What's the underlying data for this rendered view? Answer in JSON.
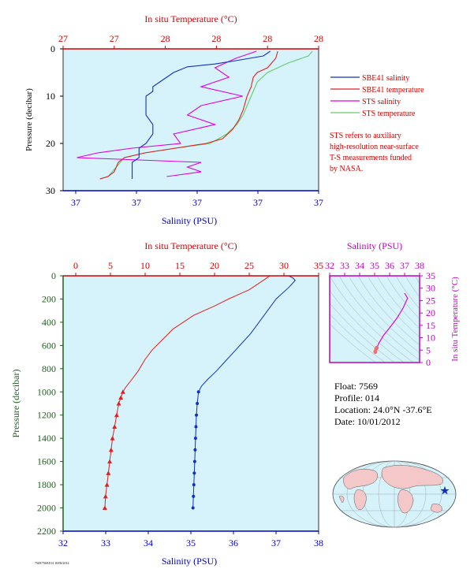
{
  "footer_code": "7569/7569/014 10/08/2014",
  "colors": {
    "salinity": "#1030c0",
    "temperature": "#e02020",
    "sts_salinity": "#e000e0",
    "sts_temperature": "#66cc66",
    "panel_bg": "#d6f3fb",
    "pressure_axis": "#1f5f1f",
    "magenta_axis": "#c000c0"
  },
  "legend": {
    "items": [
      {
        "label": "SBE41 salinity",
        "color": "#1030c0"
      },
      {
        "label": "SBE41 temperature",
        "color": "#e02020"
      },
      {
        "label": "STS salinity",
        "color": "#e000e0"
      },
      {
        "label": "STS temperature",
        "color": "#66cc66"
      }
    ],
    "note": [
      "STS refers to auxiliary",
      "high-resolution near-surface",
      "T-S measurements funded",
      "by NASA."
    ]
  },
  "info": {
    "float": "Float: 7569",
    "profile": "Profile: 014",
    "location": "Location: 24.0°N -37.6°E",
    "date": "Date: 10/01/2012"
  },
  "chart_data": [
    {
      "type": "line",
      "panel": "near-surface profile",
      "title": "",
      "top_axis_label": "In situ Temperature (°C)",
      "top_ticks": [
        "27",
        "27",
        "28",
        "28",
        "28",
        "28"
      ],
      "bottom_axis_label": "Salinity (PSU)",
      "bottom_ticks": [
        "37",
        "37",
        "37",
        "37",
        "37"
      ],
      "ylabel": "Pressure (decibar)",
      "y_ticks": [
        "0",
        "10",
        "20",
        "30"
      ],
      "ylim": [
        30,
        0
      ],
      "temperature_range": [
        27.0,
        28.25
      ],
      "salinity_range": [
        36.9,
        37.27
      ],
      "series": [
        {
          "name": "SBE41 salinity",
          "x_units": "PSU",
          "points": [
            [
              37.2,
              0.5
            ],
            [
              37.19,
              1.5
            ],
            [
              37.15,
              2.5
            ],
            [
              37.12,
              3.2
            ],
            [
              37.08,
              3.8
            ],
            [
              37.06,
              5
            ],
            [
              37.05,
              6
            ],
            [
              37.04,
              7
            ],
            [
              37.03,
              8
            ],
            [
              37.03,
              9
            ],
            [
              37.02,
              10
            ],
            [
              37.02,
              12
            ],
            [
              37.02,
              14
            ],
            [
              37.03,
              16
            ],
            [
              37.03,
              18
            ],
            [
              37.02,
              20
            ],
            [
              37.01,
              21
            ],
            [
              37.01,
              22
            ],
            [
              37.01,
              23
            ],
            [
              37.0,
              24
            ],
            [
              37.0,
              25
            ],
            [
              37.0,
              26
            ],
            [
              37.0,
              27.5
            ]
          ]
        },
        {
          "name": "SBE41 temperature",
          "x_units": "°C",
          "points": [
            [
              28.05,
              0.5
            ],
            [
              28.04,
              2
            ],
            [
              28.0,
              4
            ],
            [
              27.95,
              5
            ],
            [
              27.93,
              6
            ],
            [
              27.92,
              8
            ],
            [
              27.9,
              10
            ],
            [
              27.88,
              13
            ],
            [
              27.86,
              15
            ],
            [
              27.83,
              17
            ],
            [
              27.78,
              19
            ],
            [
              27.7,
              20
            ],
            [
              27.55,
              21
            ],
            [
              27.4,
              22
            ],
            [
              27.3,
              23
            ],
            [
              27.27,
              24
            ],
            [
              27.25,
              26
            ],
            [
              27.22,
              27
            ],
            [
              27.18,
              27.5
            ]
          ]
        },
        {
          "name": "STS salinity",
          "x_units": "PSU",
          "points": [
            [
              37.18,
              0.5
            ],
            [
              37.15,
              2
            ],
            [
              37.12,
              4
            ],
            [
              37.14,
              6
            ],
            [
              37.1,
              8
            ],
            [
              37.16,
              10
            ],
            [
              37.1,
              12
            ],
            [
              37.08,
              14
            ],
            [
              37.12,
              16
            ],
            [
              37.06,
              18
            ],
            [
              37.07,
              20
            ],
            [
              37.0,
              21
            ],
            [
              36.95,
              22
            ],
            [
              36.92,
              23
            ],
            [
              37.1,
              24
            ],
            [
              37.08,
              25
            ],
            [
              37.1,
              26
            ],
            [
              37.05,
              27
            ]
          ]
        },
        {
          "name": "STS temperature",
          "x_units": "°C",
          "points": [
            [
              28.22,
              0.5
            ],
            [
              28.2,
              1.5
            ],
            [
              28.1,
              3
            ],
            [
              28.0,
              5
            ],
            [
              27.95,
              7
            ],
            [
              27.92,
              10
            ],
            [
              27.9,
              12
            ],
            [
              27.88,
              14
            ],
            [
              27.85,
              16
            ],
            [
              27.8,
              18
            ],
            [
              27.72,
              20
            ],
            [
              27.55,
              21
            ],
            [
              27.4,
              22
            ],
            [
              27.3,
              23
            ],
            [
              27.26,
              25
            ],
            [
              27.22,
              27
            ],
            [
              27.18,
              27.5
            ]
          ]
        }
      ]
    },
    {
      "type": "line",
      "panel": "full profile",
      "title": "",
      "top_axis_label": "In situ Temperature (°C)",
      "top_ticks": [
        "0",
        "5",
        "10",
        "15",
        "20",
        "25",
        "30",
        "35"
      ],
      "bottom_axis_label": "Salinity (PSU)",
      "bottom_ticks": [
        "32",
        "33",
        "34",
        "35",
        "36",
        "37",
        "38"
      ],
      "ylabel": "Pressure (decibar)",
      "y_ticks": [
        "0",
        "200",
        "400",
        "600",
        "800",
        "1000",
        "1200",
        "1400",
        "1600",
        "1800",
        "2000",
        "2200"
      ],
      "ylim": [
        2200,
        0
      ],
      "temperature_range": [
        0,
        35
      ],
      "salinity_range": [
        32,
        38
      ],
      "series": [
        {
          "name": "Temperature",
          "x_units": "°C",
          "points": [
            [
              28,
              0
            ],
            [
              27.5,
              20
            ],
            [
              27,
              40
            ],
            [
              26,
              80
            ],
            [
              25,
              120
            ],
            [
              23.5,
              160
            ],
            [
              22,
              200
            ],
            [
              20,
              260
            ],
            [
              18.5,
              300
            ],
            [
              17,
              340
            ],
            [
              15.5,
              400
            ],
            [
              14,
              460
            ],
            [
              13,
              520
            ],
            [
              12,
              580
            ],
            [
              11,
              640
            ],
            [
              10,
              720
            ],
            [
              9,
              820
            ],
            [
              8,
              900
            ],
            [
              7.2,
              960
            ],
            [
              6.8,
              1000
            ],
            [
              6.5,
              1050
            ],
            [
              6.2,
              1100
            ],
            [
              5.9,
              1200
            ],
            [
              5.6,
              1300
            ],
            [
              5.3,
              1400
            ],
            [
              5.1,
              1500
            ],
            [
              4.9,
              1600
            ],
            [
              4.7,
              1700
            ],
            [
              4.5,
              1800
            ],
            [
              4.3,
              1900
            ],
            [
              4.2,
              2000
            ]
          ]
        },
        {
          "name": "Salinity",
          "x_units": "PSU",
          "points": [
            [
              37.3,
              0
            ],
            [
              37.4,
              20
            ],
            [
              37.45,
              40
            ],
            [
              37.3,
              100
            ],
            [
              37.0,
              200
            ],
            [
              36.8,
              300
            ],
            [
              36.6,
              400
            ],
            [
              36.4,
              500
            ],
            [
              36.2,
              580
            ],
            [
              36.0,
              660
            ],
            [
              35.8,
              740
            ],
            [
              35.6,
              820
            ],
            [
              35.4,
              890
            ],
            [
              35.25,
              950
            ],
            [
              35.18,
              1000
            ],
            [
              35.15,
              1100
            ],
            [
              35.13,
              1200
            ],
            [
              35.12,
              1300
            ],
            [
              35.11,
              1400
            ],
            [
              35.1,
              1500
            ],
            [
              35.09,
              1600
            ],
            [
              35.08,
              1700
            ],
            [
              35.07,
              1800
            ],
            [
              35.06,
              1900
            ],
            [
              35.05,
              2000
            ]
          ]
        }
      ]
    },
    {
      "type": "scatter",
      "panel": "T-S diagram",
      "top_axis_label": "Salinity (PSU)",
      "x_ticks": [
        "32",
        "33",
        "34",
        "35",
        "36",
        "37",
        "38"
      ],
      "right_axis_label": "In situ Temperature (°C)",
      "y_ticks": [
        "0",
        "5",
        "10",
        "15",
        "20",
        "25",
        "30",
        "35"
      ],
      "xlim": [
        32,
        38
      ],
      "ylim": [
        0,
        35
      ],
      "points": [
        [
          37.0,
          28
        ],
        [
          37.2,
          26
        ],
        [
          36.9,
          22
        ],
        [
          36.5,
          18
        ],
        [
          36.0,
          14
        ],
        [
          35.6,
          11
        ],
        [
          35.3,
          8
        ],
        [
          35.15,
          6
        ],
        [
          35.1,
          5.5
        ],
        [
          35.05,
          4.5
        ],
        [
          35.05,
          4.2
        ]
      ]
    }
  ]
}
